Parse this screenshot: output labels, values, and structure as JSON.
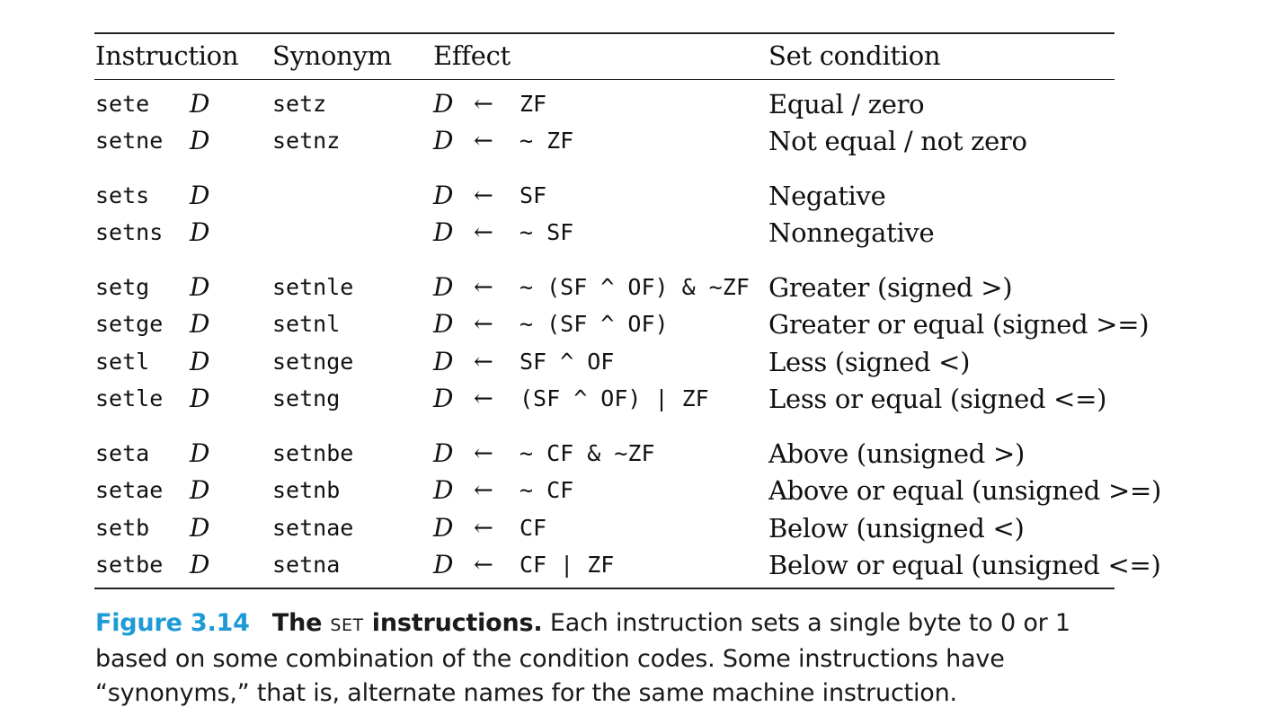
{
  "table": {
    "headers": {
      "instruction": "Instruction",
      "synonym": "Synonym",
      "effect": "Effect",
      "set_condition": "Set condition"
    },
    "dest_symbol": "D",
    "arrow_symbol": "←",
    "groups": [
      {
        "rows": [
          {
            "instruction": "sete",
            "synonym": "setz",
            "effect": "ZF",
            "condition": "Equal / zero"
          },
          {
            "instruction": "setne",
            "synonym": "setnz",
            "effect": "~ ZF",
            "condition": "Not equal / not zero"
          }
        ]
      },
      {
        "rows": [
          {
            "instruction": "sets",
            "synonym": "",
            "effect": "SF",
            "condition": "Negative"
          },
          {
            "instruction": "setns",
            "synonym": "",
            "effect": "~ SF",
            "condition": "Nonnegative"
          }
        ]
      },
      {
        "rows": [
          {
            "instruction": "setg",
            "synonym": "setnle",
            "effect": "~ (SF ^ OF) & ~ZF",
            "condition": "Greater (signed >)"
          },
          {
            "instruction": "setge",
            "synonym": "setnl",
            "effect": "~ (SF ^ OF)",
            "condition": "Greater or equal (signed >=)"
          },
          {
            "instruction": "setl",
            "synonym": "setnge",
            "effect": "SF ^ OF",
            "condition": "Less (signed <)"
          },
          {
            "instruction": "setle",
            "synonym": "setng",
            "effect": "(SF ^ OF) | ZF",
            "condition": "Less or equal (signed <=)"
          }
        ]
      },
      {
        "rows": [
          {
            "instruction": "seta",
            "synonym": "setnbe",
            "effect": "~ CF & ~ZF",
            "condition": "Above (unsigned >)"
          },
          {
            "instruction": "setae",
            "synonym": "setnb",
            "effect": "~ CF",
            "condition": "Above or equal (unsigned >=)"
          },
          {
            "instruction": "setb",
            "synonym": "setnae",
            "effect": "CF",
            "condition": "Below (unsigned <)"
          },
          {
            "instruction": "setbe",
            "synonym": "setna",
            "effect": "CF | ZF",
            "condition": "Below or equal (unsigned <=)"
          }
        ]
      }
    ]
  },
  "caption": {
    "label": "Figure 3.14",
    "title_pre": "The",
    "title_smallcaps": "SET",
    "title_post": "instructions.",
    "text": "Each instruction sets a single byte to 0 or 1 based on some combination of the condition codes. Some instructions have “synonyms,” that is, alternate names for the same machine instruction."
  }
}
